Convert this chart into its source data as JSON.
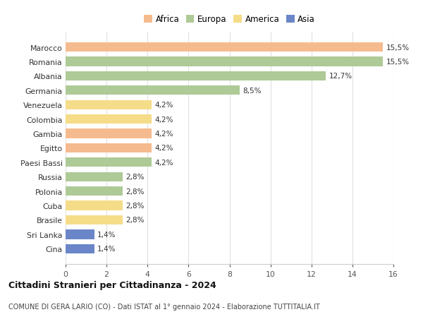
{
  "categories": [
    "Marocco",
    "Romania",
    "Albania",
    "Germania",
    "Venezuela",
    "Colombia",
    "Gambia",
    "Egitto",
    "Paesi Bassi",
    "Russia",
    "Polonia",
    "Cuba",
    "Brasile",
    "Sri Lanka",
    "Cina"
  ],
  "values": [
    15.5,
    15.5,
    12.7,
    8.5,
    4.2,
    4.2,
    4.2,
    4.2,
    4.2,
    2.8,
    2.8,
    2.8,
    2.8,
    1.4,
    1.4
  ],
  "labels": [
    "15,5%",
    "15,5%",
    "12,7%",
    "8,5%",
    "4,2%",
    "4,2%",
    "4,2%",
    "4,2%",
    "4,2%",
    "2,8%",
    "2,8%",
    "2,8%",
    "2,8%",
    "1,4%",
    "1,4%"
  ],
  "continents": [
    "Africa",
    "Europa",
    "Europa",
    "Europa",
    "America",
    "America",
    "Africa",
    "Africa",
    "Europa",
    "Europa",
    "Europa",
    "America",
    "America",
    "Asia",
    "Asia"
  ],
  "colors": {
    "Africa": "#F5BB8F",
    "Europa": "#AECA96",
    "America": "#F5DC88",
    "Asia": "#6B86C8"
  },
  "title": "Cittadini Stranieri per Cittadinanza - 2024",
  "subtitle": "COMUNE DI GERA LARIO (CO) - Dati ISTAT al 1° gennaio 2024 - Elaborazione TUTTITALIA.IT",
  "xlim": [
    0,
    16
  ],
  "xticks": [
    0,
    2,
    4,
    6,
    8,
    10,
    12,
    14,
    16
  ],
  "background_color": "#ffffff",
  "grid_color": "#e0e0e0"
}
